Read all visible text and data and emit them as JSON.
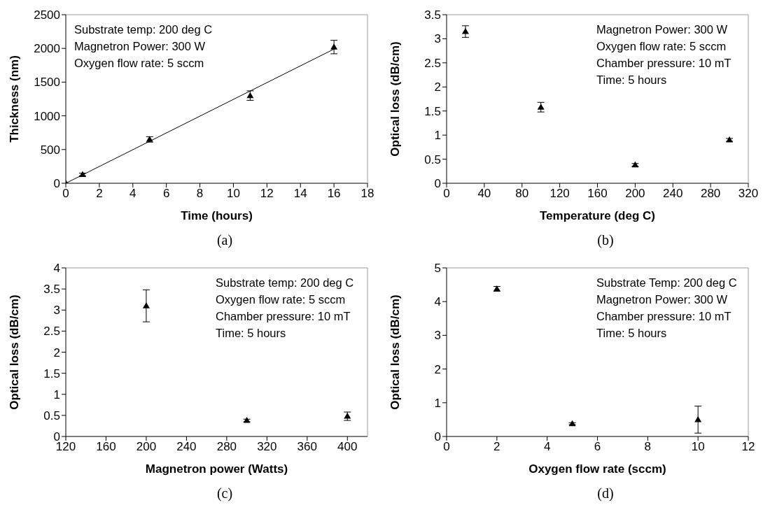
{
  "chart_data": [
    {
      "type": "scatter",
      "title": "(a)",
      "xlabel": "Time (hours)",
      "ylabel": "Thickness (nm)",
      "xlim": [
        0,
        18
      ],
      "xticks": [
        0,
        2,
        4,
        6,
        8,
        10,
        12,
        14,
        16,
        18
      ],
      "ylim": [
        0,
        2500
      ],
      "yticks": [
        0,
        500,
        1000,
        1500,
        2000,
        2500
      ],
      "marker": "triangle",
      "grid": false,
      "annotations": [
        "Substrate temp: 200 deg C",
        "Magnetron Power: 300 W",
        "Oxygen flow rate: 5 sccm"
      ],
      "series": [
        {
          "color": "#000000",
          "x": [
            0,
            1,
            5,
            11,
            16
          ],
          "values": [
            0,
            130,
            650,
            1300,
            2020
          ],
          "errors": [
            null,
            20,
            40,
            70,
            100
          ]
        },
        {
          "type": "line",
          "marker": "none",
          "color": "#000000",
          "x": [
            0,
            16
          ],
          "values": [
            0,
            1990
          ]
        }
      ]
    },
    {
      "type": "scatter",
      "title": "(b)",
      "xlabel": "Temperature (deg C)",
      "ylabel": "Optical loss (dB/cm)",
      "xlim": [
        0,
        320
      ],
      "xticks": [
        0,
        40,
        80,
        120,
        160,
        200,
        240,
        280,
        320
      ],
      "ylim": [
        0,
        3.5
      ],
      "yticks": [
        0,
        0.5,
        1,
        1.5,
        2,
        2.5,
        3,
        3.5
      ],
      "marker": "triangle",
      "grid": false,
      "annotations": [
        "Magnetron Power: 300 W",
        "Oxygen flow rate: 5 sccm",
        "Chamber pressure: 10 mT",
        "Time: 5 hours"
      ],
      "series": [
        {
          "color": "#000000",
          "x": [
            20,
            100,
            200,
            300
          ],
          "values": [
            3.15,
            1.58,
            0.38,
            0.9
          ],
          "errors": [
            0.12,
            0.1,
            0.03,
            0.03
          ]
        }
      ]
    },
    {
      "type": "scatter",
      "title": "(c)",
      "xlabel": "Magnetron power (Watts)",
      "ylabel": "Optical loss (dB/cm)",
      "xlim": [
        120,
        420
      ],
      "xticks": [
        120,
        160,
        200,
        240,
        280,
        320,
        360,
        400
      ],
      "ylim": [
        0,
        4
      ],
      "yticks": [
        0,
        0.5,
        1,
        1.5,
        2,
        2.5,
        3,
        3.5,
        4
      ],
      "marker": "triangle",
      "grid": false,
      "annotations": [
        "Substrate temp: 200 deg C",
        "Oxygen flow rate: 5 sccm",
        "Chamber pressure: 10 mT",
        "Time: 5 hours"
      ],
      "series": [
        {
          "color": "#000000",
          "x": [
            200,
            300,
            400
          ],
          "values": [
            3.1,
            0.38,
            0.48
          ],
          "errors": [
            0.38,
            0.03,
            0.1
          ]
        }
      ]
    },
    {
      "type": "scatter",
      "title": "(d)",
      "xlabel": "Oxygen flow rate (sccm)",
      "ylabel": "Optical loss (dB/cm)",
      "xlim": [
        0,
        12
      ],
      "xticks": [
        0,
        2,
        4,
        6,
        8,
        10,
        12
      ],
      "ylim": [
        0,
        5
      ],
      "yticks": [
        0,
        1,
        2,
        3,
        4,
        5
      ],
      "marker": "triangle",
      "grid": false,
      "annotations": [
        "Substrate Temp: 200 deg C",
        "Magnetron Power: 300 W",
        "Chamber pressure: 10 mT",
        "Time: 5 hours"
      ],
      "series": [
        {
          "color": "#000000",
          "x": [
            2,
            5,
            10
          ],
          "values": [
            4.38,
            0.38,
            0.5
          ],
          "errors": [
            0.07,
            0.03,
            0.4
          ]
        }
      ]
    }
  ]
}
